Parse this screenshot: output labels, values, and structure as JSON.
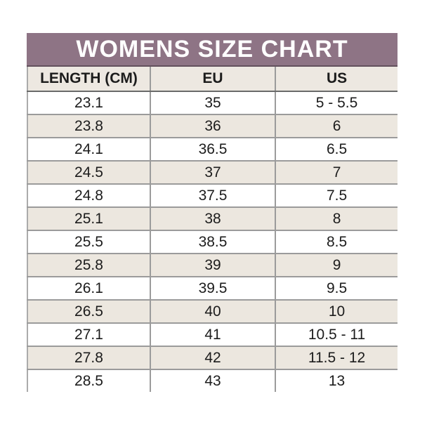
{
  "title": "WOMENS SIZE CHART",
  "colors": {
    "title_bar_bg": "#8e7485",
    "title_text": "#ffffff",
    "header_row_bg": "#ede8e1",
    "stripe_row_bg": "#ece7df",
    "plain_row_bg": "#ffffff",
    "grid_line": "#9b9b9b",
    "header_underline": "#6a6a6a",
    "body_text": "#1c1c1c"
  },
  "chart_data": {
    "type": "table",
    "title": "WOMENS SIZE CHART",
    "columns": [
      "LENGTH (CM)",
      "EU",
      "US"
    ],
    "rows": [
      [
        "23.1",
        "35",
        "5 - 5.5"
      ],
      [
        "23.8",
        "36",
        "6"
      ],
      [
        "24.1",
        "36.5",
        "6.5"
      ],
      [
        "24.5",
        "37",
        "7"
      ],
      [
        "24.8",
        "37.5",
        "7.5"
      ],
      [
        "25.1",
        "38",
        "8"
      ],
      [
        "25.5",
        "38.5",
        "8.5"
      ],
      [
        "25.8",
        "39",
        "9"
      ],
      [
        "26.1",
        "39.5",
        "9.5"
      ],
      [
        "26.5",
        "40",
        "10"
      ],
      [
        "27.1",
        "41",
        "10.5 - 11"
      ],
      [
        "27.8",
        "42",
        "11.5 - 12"
      ],
      [
        "28.5",
        "43",
        "13"
      ]
    ],
    "layout": {
      "striping": "alternating white/beige starting white",
      "outer_borders": "left only",
      "columns_equal_thirds": true
    }
  }
}
